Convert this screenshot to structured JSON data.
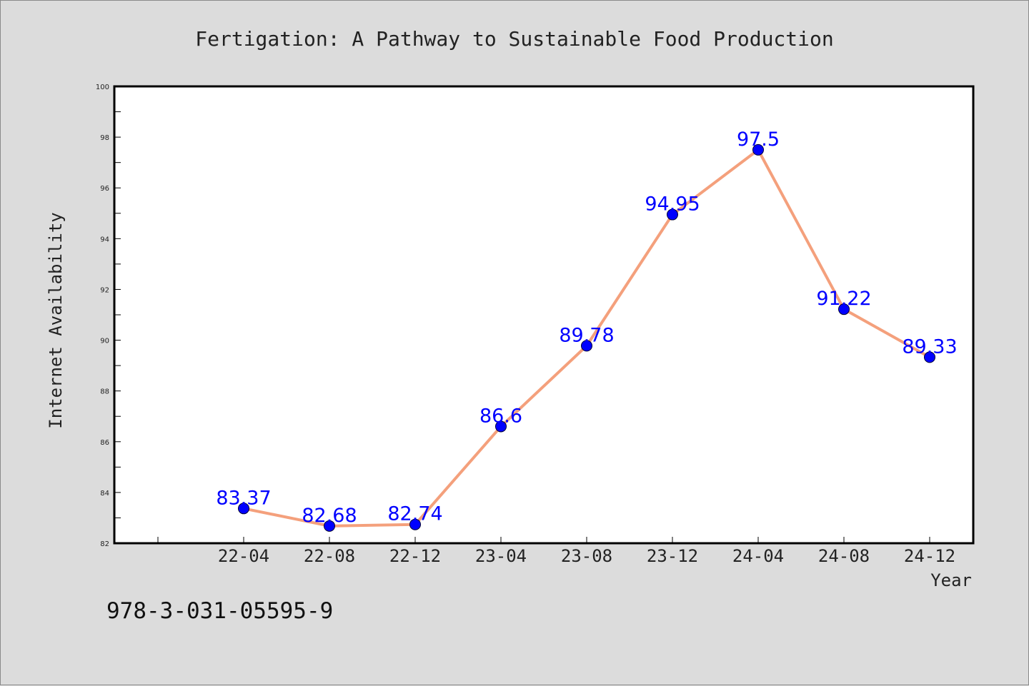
{
  "colors": {
    "background": "#dcdcdc",
    "plot_area": "#ffffff",
    "line": "#f4a07c",
    "marker": "#0000ff",
    "data_label": "#0000ff",
    "text": "#222222"
  },
  "footer": {
    "isbn": "978-3-031-05595-9"
  },
  "chart_data": {
    "type": "line",
    "title": "Fertigation: A Pathway to Sustainable Food Production",
    "xlabel": "Year",
    "ylabel": "Internet Availability",
    "categories": [
      "22-04",
      "22-08",
      "22-12",
      "23-04",
      "23-08",
      "23-12",
      "24-04",
      "24-08",
      "24-12"
    ],
    "series": [
      {
        "values": [
          83.37,
          82.68,
          82.74,
          86.6,
          89.78,
          94.95,
          97.5,
          91.22,
          89.33
        ],
        "labels": [
          "83.37",
          "82.68",
          "82.74",
          "86.6",
          "89.78",
          "94.95",
          "97.5",
          "91.22",
          "89.33"
        ]
      }
    ],
    "ylim": [
      82,
      100
    ],
    "yticks": [
      "82",
      "84",
      "86",
      "88",
      "90",
      "92",
      "94",
      "96",
      "98",
      "100"
    ],
    "grid": false,
    "legend": "none"
  }
}
